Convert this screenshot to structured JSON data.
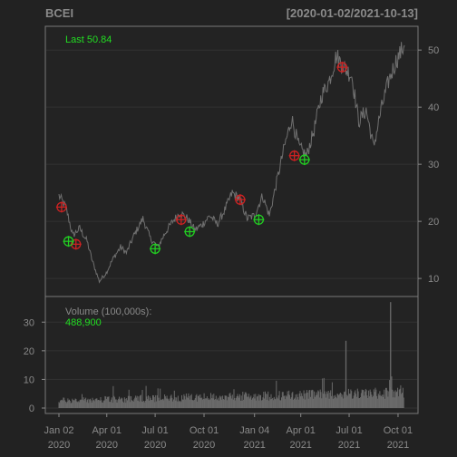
{
  "chart_data": {
    "type": "line",
    "title": "BCEI",
    "date_range": "[2020-01-02/2021-10-13]",
    "x_start": "2020-01-02",
    "x_end": "2021-10-13",
    "last_label": "Last 50.84",
    "price": {
      "ylim": [
        7,
        54
      ],
      "y_ticks": [
        10,
        20,
        30,
        40,
        50
      ],
      "series": [
        {
          "date": "2020-01-02",
          "close": 24.5
        },
        {
          "date": "2020-01-15",
          "close": 22.5
        },
        {
          "date": "2020-01-28",
          "close": 17.5
        },
        {
          "date": "2020-02-10",
          "close": 18.8
        },
        {
          "date": "2020-02-24",
          "close": 16.5
        },
        {
          "date": "2020-03-05",
          "close": 13.0
        },
        {
          "date": "2020-03-18",
          "close": 9.5
        },
        {
          "date": "2020-03-31",
          "close": 11.0
        },
        {
          "date": "2020-04-13",
          "close": 13.5
        },
        {
          "date": "2020-04-27",
          "close": 15.5
        },
        {
          "date": "2020-05-08",
          "close": 14.5
        },
        {
          "date": "2020-05-22",
          "close": 17.5
        },
        {
          "date": "2020-06-08",
          "close": 20.5
        },
        {
          "date": "2020-06-22",
          "close": 17.0
        },
        {
          "date": "2020-07-06",
          "close": 15.5
        },
        {
          "date": "2020-07-20",
          "close": 18.0
        },
        {
          "date": "2020-08-03",
          "close": 20.0
        },
        {
          "date": "2020-08-17",
          "close": 21.5
        },
        {
          "date": "2020-08-31",
          "close": 20.5
        },
        {
          "date": "2020-09-14",
          "close": 18.5
        },
        {
          "date": "2020-09-28",
          "close": 19.5
        },
        {
          "date": "2020-10-12",
          "close": 21.0
        },
        {
          "date": "2020-10-26",
          "close": 19.5
        },
        {
          "date": "2020-11-09",
          "close": 22.0
        },
        {
          "date": "2020-11-23",
          "close": 25.0
        },
        {
          "date": "2020-12-07",
          "close": 24.0
        },
        {
          "date": "2020-12-21",
          "close": 20.5
        },
        {
          "date": "2021-01-04",
          "close": 21.0
        },
        {
          "date": "2021-01-19",
          "close": 24.5
        },
        {
          "date": "2021-02-01",
          "close": 21.0
        },
        {
          "date": "2021-02-16",
          "close": 27.5
        },
        {
          "date": "2021-03-01",
          "close": 33.0
        },
        {
          "date": "2021-03-15",
          "close": 38.0
        },
        {
          "date": "2021-03-29",
          "close": 33.0
        },
        {
          "date": "2021-04-12",
          "close": 31.5
        },
        {
          "date": "2021-04-26",
          "close": 36.0
        },
        {
          "date": "2021-05-10",
          "close": 42.0
        },
        {
          "date": "2021-05-24",
          "close": 44.5
        },
        {
          "date": "2021-06-07",
          "close": 49.0
        },
        {
          "date": "2021-06-21",
          "close": 47.0
        },
        {
          "date": "2021-07-06",
          "close": 45.5
        },
        {
          "date": "2021-07-19",
          "close": 37.5
        },
        {
          "date": "2021-08-02",
          "close": 39.5
        },
        {
          "date": "2021-08-16",
          "close": 33.0
        },
        {
          "date": "2021-08-30",
          "close": 39.5
        },
        {
          "date": "2021-09-13",
          "close": 44.5
        },
        {
          "date": "2021-09-27",
          "close": 48.0
        },
        {
          "date": "2021-10-13",
          "close": 50.84
        }
      ],
      "buy_signals": [
        {
          "date": "2020-01-20",
          "value": 16.5
        },
        {
          "date": "2020-07-01",
          "value": 15.2
        },
        {
          "date": "2020-09-04",
          "value": 18.2
        },
        {
          "date": "2021-01-12",
          "value": 20.3
        },
        {
          "date": "2021-04-08",
          "value": 30.8
        }
      ],
      "sell_signals": [
        {
          "date": "2020-01-07",
          "value": 22.5
        },
        {
          "date": "2020-02-03",
          "value": 16.0
        },
        {
          "date": "2020-08-19",
          "value": 20.3
        },
        {
          "date": "2020-12-08",
          "value": 23.8
        },
        {
          "date": "2021-03-20",
          "value": 31.5
        },
        {
          "date": "2021-06-18",
          "value": 47.0
        }
      ]
    },
    "volume": {
      "label": "Volume (100,000s):",
      "last_value": "488,900",
      "ylim": [
        0,
        38
      ],
      "y_ticks": [
        0,
        10,
        20,
        30
      ],
      "spikes": [
        {
          "date": "2021-06-25",
          "value": 23.5
        },
        {
          "date": "2021-09-17",
          "value": 37.0
        }
      ]
    },
    "x_ticks": [
      {
        "date": "2020-01-02",
        "line1": "Jan 02",
        "line2": "2020"
      },
      {
        "date": "2020-04-01",
        "line1": "Apr 01",
        "line2": "2020"
      },
      {
        "date": "2020-07-01",
        "line1": "Jul 01",
        "line2": "2020"
      },
      {
        "date": "2020-10-01",
        "line1": "Oct 01",
        "line2": "2020"
      },
      {
        "date": "2021-01-04",
        "line1": "Jan 04",
        "line2": "2021"
      },
      {
        "date": "2021-04-01",
        "line1": "Apr 01",
        "line2": "2021"
      },
      {
        "date": "2021-07-01",
        "line1": "Jul 01",
        "line2": "2021"
      },
      {
        "date": "2021-10-01",
        "line1": "Oct 01",
        "line2": "2021"
      }
    ],
    "colors": {
      "background": "#222222",
      "line": "#707070",
      "grid": "#333333",
      "axis": "#8a8a8a",
      "buy": "#22cc22",
      "sell": "#cc2222",
      "volume": "#6a6a6a"
    },
    "grid": true
  }
}
